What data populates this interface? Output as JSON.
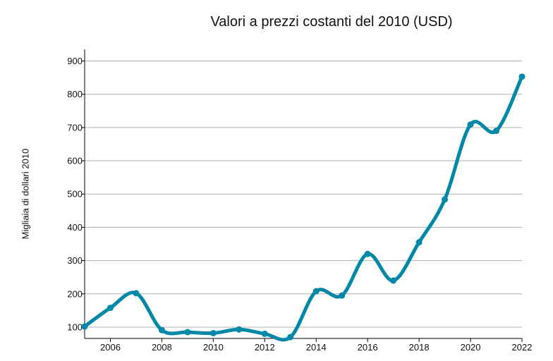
{
  "chart_data": {
    "type": "line",
    "title": "Valori a prezzi costanti del 2010 (USD)",
    "ylabel": "Migliaia di dollari 2010",
    "xlabel": "",
    "x": [
      2005,
      2006,
      2007,
      2008,
      2009,
      2010,
      2011,
      2012,
      2013,
      2014,
      2015,
      2016,
      2017,
      2018,
      2019,
      2020,
      2021,
      2022
    ],
    "series": [
      {
        "values": [
          102,
          158,
          202,
          91,
          85,
          82,
          93,
          80,
          70,
          208,
          195,
          320,
          240,
          355,
          484,
          709,
          690,
          853
        ]
      }
    ],
    "xlim": [
      2005,
      2022
    ],
    "ylim": [
      66,
      935
    ],
    "xticks": [
      2006,
      2008,
      2010,
      2012,
      2014,
      2016,
      2018,
      2020,
      2022
    ],
    "yticks": [
      100,
      200,
      300,
      400,
      500,
      600,
      700,
      800,
      900
    ],
    "grid": "horizontal",
    "colors": {
      "line": "#0088a6",
      "grid": "#b0b0b0",
      "axis": "#000000"
    }
  }
}
